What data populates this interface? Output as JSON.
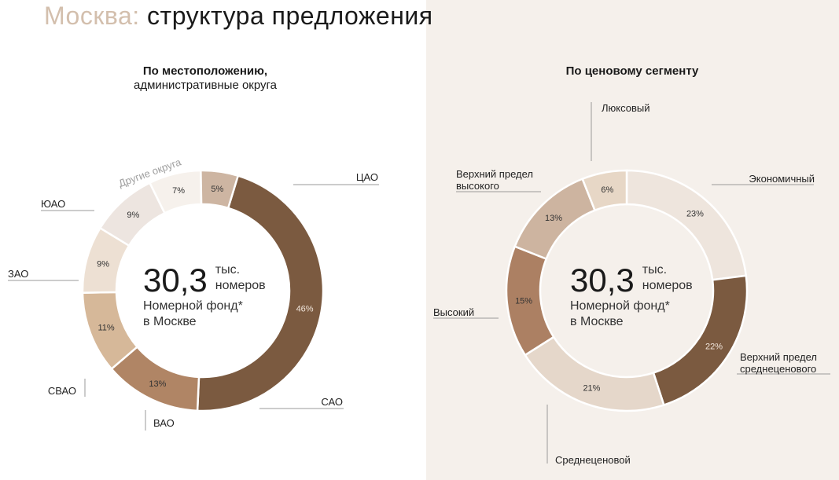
{
  "title": {
    "accent": "Москва:",
    "main": "структура предложения"
  },
  "left_center": {
    "value": "30,3",
    "unit_line1": "тыс.",
    "unit_line2": "номеров",
    "fund_line1": "Номерной фонд*",
    "fund_line2": "в Москве"
  },
  "right_center": {
    "value": "30,3",
    "unit_line1": "тыс.",
    "unit_line2": "номеров",
    "fund_line1": "Номерной фонд*",
    "fund_line2": "в Москве"
  },
  "chart_data": [
    {
      "type": "pie",
      "title": "По местоположению,",
      "subtitle": "административные округа",
      "categories": [
        "ЦАО",
        "САО",
        "ВАО",
        "СВАО",
        "ЗАО",
        "ЮАО",
        "Другие округа"
      ],
      "values": [
        46,
        13,
        11,
        9,
        9,
        7,
        5
      ],
      "value_labels": [
        "46%",
        "13%",
        "11%",
        "9%",
        "9%",
        "7%",
        "5%"
      ],
      "colors": [
        "#7b5a40",
        "#b08565",
        "#d6b899",
        "#ede0d3",
        "#ede5e0",
        "#f6f1ec",
        "#cdb5a2"
      ]
    },
    {
      "type": "pie",
      "title": "По ценовому сегменту",
      "categories": [
        "Экономичный",
        "Верхний предел среднеценового",
        "Среднеценовой",
        "Высокий",
        "Верхний предел высокого",
        "Люксовый"
      ],
      "category_lines": [
        [
          "Экономичный"
        ],
        [
          "Верхний предел",
          "среднеценового"
        ],
        [
          "Среднеценовой"
        ],
        [
          "Высокий"
        ],
        [
          "Верхний предел",
          "высокого"
        ],
        [
          "Люксовый"
        ]
      ],
      "values": [
        23,
        22,
        21,
        15,
        13,
        6
      ],
      "value_labels": [
        "23%",
        "22%",
        "21%",
        "15%",
        "13%",
        "6%"
      ],
      "colors": [
        "#eee5dd",
        "#7b5a40",
        "#e5d7ca",
        "#ac8063",
        "#cdb4a0",
        "#e7d7c6"
      ]
    }
  ]
}
